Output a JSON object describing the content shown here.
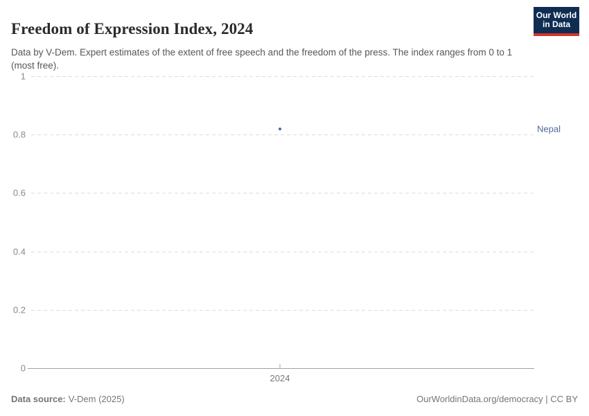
{
  "header": {
    "title": "Freedom of Expression Index, 2024",
    "subtitle": "Data by V-Dem. Expert estimates of the extent of free speech and the freedom of the press. The index ranges from 0 to 1 (most free).",
    "logo": {
      "line1": "Our World",
      "line2": "in Data"
    }
  },
  "chart_data": {
    "type": "scatter",
    "title": "Freedom of Expression Index, 2024",
    "x": [
      2024
    ],
    "x_ticks": [
      "2024"
    ],
    "y_ticks": [
      1,
      0.8,
      0.6,
      0.4,
      0.2,
      0
    ],
    "ylim": [
      0,
      1
    ],
    "xlabel": "",
    "ylabel": "",
    "grid": "horizontal-dashed",
    "legend_position": "right-of-point",
    "series": [
      {
        "name": "Nepal",
        "x": [
          2024
        ],
        "y": [
          0.82
        ],
        "color": "#4c6a9c"
      }
    ]
  },
  "footer": {
    "source_label": "Data source:",
    "source_value": "V-Dem (2025)",
    "credit": "OurWorldinData.org/democracy | CC BY"
  },
  "colors": {
    "accent": "#4c6a9c",
    "logo_bg": "#0f2d52",
    "logo_accent": "#d6342c",
    "gridline": "#dcdcdc",
    "axis": "#a0a0a0"
  }
}
